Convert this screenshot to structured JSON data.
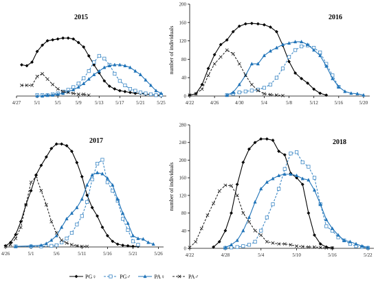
{
  "chart_data": [
    {
      "type": "line",
      "title": "2015",
      "xlabel": "",
      "ylabel": "",
      "x_ticks": [
        "4/27",
        "5/1",
        "5/5",
        "5/9",
        "5/13",
        "5/17",
        "5/21",
        "5/25"
      ],
      "x_range": [
        "4/27",
        "5/26"
      ],
      "y_ticks": [],
      "ylim": [
        0,
        100
      ],
      "grid": false,
      "series": [
        {
          "key": "pg_f",
          "x": [
            "4/28",
            "4/29",
            "4/30",
            "5/1",
            "5/2",
            "5/3",
            "5/4",
            "5/5",
            "5/6",
            "5/7",
            "5/8",
            "5/9",
            "5/10",
            "5/11",
            "5/12",
            "5/13",
            "5/14",
            "5/15",
            "5/16",
            "5/17",
            "5/18",
            "5/19",
            "5/20",
            "5/21",
            "5/22",
            "5/23",
            "5/24",
            "5/25"
          ],
          "values": [
            35,
            34,
            38,
            50,
            57,
            62,
            63,
            64,
            65,
            65,
            64,
            60,
            55,
            45,
            35,
            26,
            17,
            11,
            8,
            6,
            5,
            4,
            3,
            3,
            2,
            2,
            1,
            1
          ]
        },
        {
          "key": "pg_m",
          "x": [
            "5/1",
            "5/2",
            "5/3",
            "5/4",
            "5/5",
            "5/6",
            "5/7",
            "5/8",
            "5/9",
            "5/10",
            "5/11",
            "5/12",
            "5/13",
            "5/14",
            "5/15",
            "5/16",
            "5/17",
            "5/18",
            "5/19",
            "5/20",
            "5/21",
            "5/22",
            "5/23",
            "5/24",
            "5/25"
          ],
          "values": [
            1,
            1,
            1,
            2,
            3,
            5,
            7,
            10,
            14,
            20,
            28,
            38,
            45,
            42,
            35,
            25,
            17,
            12,
            8,
            6,
            4,
            3,
            2,
            1,
            1
          ]
        },
        {
          "key": "pa_f",
          "x": [
            "5/1",
            "5/2",
            "5/3",
            "5/4",
            "5/5",
            "5/6",
            "5/7",
            "5/8",
            "5/9",
            "5/10",
            "5/11",
            "5/12",
            "5/13",
            "5/14",
            "5/15",
            "5/16",
            "5/17",
            "5/18",
            "5/19",
            "5/20",
            "5/21",
            "5/22",
            "5/23",
            "5/24",
            "5/25"
          ],
          "values": [
            0,
            0,
            1,
            1,
            2,
            3,
            5,
            7,
            10,
            14,
            19,
            24,
            28,
            32,
            34,
            35,
            35,
            34,
            32,
            28,
            24,
            18,
            12,
            6,
            3
          ]
        },
        {
          "key": "pa_m",
          "x": [
            "4/28",
            "4/29",
            "4/30",
            "5/1",
            "5/2",
            "5/3",
            "5/4",
            "5/5",
            "5/6",
            "5/7",
            "5/8",
            "5/9",
            "5/10",
            "5/11"
          ],
          "values": [
            12,
            12,
            12,
            22,
            25,
            19,
            13,
            8,
            5,
            4,
            3,
            2,
            2,
            1
          ]
        }
      ]
    },
    {
      "type": "line",
      "title": "2016",
      "xlabel": "",
      "ylabel": "number of individuals",
      "x_ticks": [
        "4/22",
        "4/26",
        "4/30",
        "5/4",
        "5/8",
        "5/12",
        "5/16",
        "5/20"
      ],
      "x_range": [
        "4/22",
        "5/21"
      ],
      "y_ticks": [
        "0",
        "40",
        "80",
        "120",
        "160",
        "200"
      ],
      "ylim": [
        0,
        200
      ],
      "grid": false,
      "series": [
        {
          "key": "pg_f",
          "x": [
            "4/22",
            "4/23",
            "4/24",
            "4/25",
            "4/26",
            "4/27",
            "4/28",
            "4/29",
            "4/30",
            "5/1",
            "5/2",
            "5/3",
            "5/4",
            "5/5",
            "5/6",
            "5/7",
            "5/8",
            "5/9",
            "5/10",
            "5/11",
            "5/12",
            "5/13",
            "5/14"
          ],
          "values": [
            2,
            5,
            25,
            60,
            90,
            112,
            122,
            140,
            152,
            157,
            158,
            157,
            155,
            150,
            140,
            110,
            75,
            50,
            38,
            28,
            15,
            6,
            2
          ]
        },
        {
          "key": "pg_m",
          "x": [
            "4/28",
            "4/29",
            "4/30",
            "5/1",
            "5/2",
            "5/3",
            "5/4",
            "5/5",
            "5/6",
            "5/7",
            "5/8",
            "5/9",
            "5/10",
            "5/11",
            "5/12",
            "5/13",
            "5/14",
            "5/15",
            "5/16"
          ],
          "values": [
            2,
            5,
            8,
            10,
            12,
            14,
            18,
            25,
            40,
            60,
            85,
            100,
            108,
            110,
            105,
            95,
            70,
            45,
            20
          ]
        },
        {
          "key": "pa_f",
          "x": [
            "4/28",
            "4/29",
            "4/30",
            "5/1",
            "5/2",
            "5/3",
            "5/4",
            "5/5",
            "5/6",
            "5/7",
            "5/8",
            "5/9",
            "5/10",
            "5/11",
            "5/12",
            "5/13",
            "5/14",
            "5/15",
            "5/16",
            "5/17",
            "5/18",
            "5/19",
            "5/20"
          ],
          "values": [
            2,
            8,
            25,
            45,
            70,
            70,
            88,
            98,
            105,
            112,
            115,
            118,
            118,
            112,
            100,
            88,
            65,
            38,
            20,
            10,
            6,
            5,
            2
          ]
        },
        {
          "key": "pa_m",
          "x": [
            "4/22",
            "4/23",
            "4/24",
            "4/25",
            "4/26",
            "4/27",
            "4/28",
            "4/29",
            "4/30",
            "5/1",
            "5/2",
            "5/3",
            "5/4",
            "5/5",
            "5/6",
            "5/7"
          ],
          "values": [
            2,
            5,
            15,
            45,
            70,
            85,
            100,
            92,
            70,
            45,
            25,
            12,
            5,
            3,
            2,
            1
          ]
        }
      ]
    },
    {
      "type": "line",
      "title": "2017",
      "xlabel": "",
      "ylabel": "",
      "x_ticks": [
        "4/26",
        "5/1",
        "5/6",
        "5/11",
        "5/16",
        "5/21",
        "5/26"
      ],
      "x_range": [
        "4/26",
        "5/27"
      ],
      "y_ticks": [],
      "ylim": [
        0,
        200
      ],
      "grid": false,
      "series": [
        {
          "key": "pg_f",
          "x": [
            "4/26",
            "4/27",
            "4/28",
            "4/29",
            "4/30",
            "5/1",
            "5/2",
            "5/3",
            "5/4",
            "5/5",
            "5/6",
            "5/7",
            "5/8",
            "5/9",
            "5/10",
            "5/11",
            "5/12",
            "5/13",
            "5/14",
            "5/15",
            "5/16",
            "5/17",
            "5/18",
            "5/19",
            "5/20",
            "5/21",
            "5/22"
          ],
          "values": [
            2,
            8,
            22,
            45,
            75,
            100,
            128,
            145,
            160,
            175,
            183,
            183,
            180,
            170,
            150,
            125,
            92,
            70,
            55,
            35,
            20,
            10,
            5,
            3,
            2,
            1,
            1
          ]
        },
        {
          "key": "pg_m",
          "x": [
            "4/28",
            "5/1",
            "5/3",
            "5/5",
            "5/6",
            "5/7",
            "5/8",
            "5/9",
            "5/10",
            "5/11",
            "5/12",
            "5/13",
            "5/14",
            "5/15",
            "5/16",
            "5/17",
            "5/18",
            "5/19",
            "5/20",
            "5/21",
            "5/22"
          ],
          "values": [
            1,
            1,
            1,
            2,
            3,
            8,
            15,
            25,
            40,
            55,
            80,
            120,
            148,
            155,
            115,
            100,
            82,
            50,
            30,
            10,
            4
          ]
        },
        {
          "key": "pa_f",
          "x": [
            "4/28",
            "5/1",
            "5/3",
            "5/4",
            "5/5",
            "5/6",
            "5/7",
            "5/8",
            "5/9",
            "5/10",
            "5/11",
            "5/12",
            "5/13",
            "5/14",
            "5/15",
            "5/16",
            "5/17",
            "5/18",
            "5/19",
            "5/20",
            "5/21",
            "5/22",
            "5/23",
            "5/24",
            "5/25"
          ],
          "values": [
            1,
            2,
            3,
            6,
            12,
            20,
            35,
            50,
            60,
            70,
            85,
            110,
            128,
            132,
            130,
            122,
            110,
            85,
            60,
            42,
            20,
            15,
            14,
            8,
            5
          ]
        },
        {
          "key": "pa_m",
          "x": [
            "4/26",
            "4/27",
            "4/28",
            "4/29",
            "4/30",
            "5/1",
            "5/2",
            "5/3",
            "5/4",
            "5/5",
            "5/6",
            "5/7",
            "5/8",
            "5/9",
            "5/10",
            "5/11",
            "5/12"
          ],
          "values": [
            1,
            4,
            15,
            35,
            75,
            115,
            125,
            100,
            75,
            45,
            25,
            12,
            7,
            4,
            2,
            1,
            1
          ]
        }
      ]
    },
    {
      "type": "line",
      "title": "2018",
      "xlabel": "",
      "ylabel": "number of individuals",
      "x_ticks": [
        "4/22",
        "4/28",
        "5/4",
        "5/10",
        "5/16",
        "5/22"
      ],
      "x_range": [
        "4/22",
        "5/23"
      ],
      "y_ticks": [
        "0",
        "40",
        "80",
        "120",
        "160",
        "200",
        "240",
        "280"
      ],
      "ylim": [
        0,
        280
      ],
      "grid": false,
      "series": [
        {
          "key": "pg_f",
          "x": [
            "4/26",
            "4/27",
            "4/28",
            "4/29",
            "4/30",
            "5/1",
            "5/2",
            "5/3",
            "5/4",
            "5/5",
            "5/6",
            "5/7",
            "5/8",
            "5/9",
            "5/10",
            "5/11",
            "5/12",
            "5/13",
            "5/14",
            "5/15",
            "5/16"
          ],
          "values": [
            3,
            15,
            40,
            80,
            145,
            195,
            225,
            240,
            248,
            248,
            245,
            220,
            212,
            170,
            160,
            145,
            80,
            30,
            10,
            3,
            1
          ]
        },
        {
          "key": "pg_m",
          "x": [
            "4/28",
            "4/29",
            "4/30",
            "5/1",
            "5/2",
            "5/3",
            "5/4",
            "5/5",
            "5/6",
            "5/7",
            "5/8",
            "5/9",
            "5/10",
            "5/11",
            "5/12",
            "5/13",
            "5/14",
            "5/15",
            "5/16",
            "5/17",
            "5/18",
            "5/19",
            "5/20",
            "5/21",
            "5/22"
          ],
          "values": [
            1,
            2,
            3,
            5,
            8,
            15,
            40,
            70,
            100,
            135,
            180,
            215,
            218,
            195,
            185,
            160,
            100,
            50,
            40,
            25,
            18,
            10,
            5,
            3,
            1
          ]
        },
        {
          "key": "pa_f",
          "x": [
            "4/28",
            "4/29",
            "4/30",
            "5/1",
            "5/2",
            "5/3",
            "5/4",
            "5/5",
            "5/6",
            "5/7",
            "5/8",
            "5/9",
            "5/10",
            "5/11",
            "5/12",
            "5/13",
            "5/14",
            "5/15",
            "5/16",
            "5/17",
            "5/18",
            "5/19",
            "5/20",
            "5/21",
            "5/22"
          ],
          "values": [
            2,
            8,
            18,
            40,
            70,
            105,
            135,
            150,
            158,
            165,
            168,
            168,
            165,
            158,
            155,
            132,
            100,
            65,
            45,
            30,
            18,
            15,
            10,
            5,
            2
          ]
        },
        {
          "key": "pa_m",
          "x": [
            "4/22",
            "4/23",
            "4/24",
            "4/25",
            "4/26",
            "4/27",
            "4/28",
            "4/29",
            "4/30",
            "5/1",
            "5/2",
            "5/3",
            "5/4",
            "5/5",
            "5/6",
            "5/7",
            "5/8",
            "5/9",
            "5/10",
            "5/11",
            "5/12",
            "5/13",
            "5/14",
            "5/15",
            "5/16"
          ],
          "values": [
            2,
            15,
            45,
            75,
            102,
            130,
            143,
            142,
            120,
            80,
            60,
            40,
            30,
            15,
            12,
            10,
            10,
            8,
            5,
            4,
            3,
            3,
            2,
            1,
            1
          ]
        }
      ]
    }
  ],
  "legend": {
    "placement": "bottom",
    "items": [
      {
        "key": "pg_f",
        "label": "PG♀",
        "color": "#000000",
        "dash": "solid",
        "marker": "diamond"
      },
      {
        "key": "pg_m",
        "label": "PG♂",
        "color": "#3a86c4",
        "dash": "dashed",
        "marker": "square"
      },
      {
        "key": "pa_f",
        "label": "PA♀",
        "color": "#1f73b8",
        "dash": "solid",
        "marker": "triangle"
      },
      {
        "key": "pa_m",
        "label": "PA♂",
        "color": "#222222",
        "dash": "dashed",
        "marker": "x"
      }
    ]
  }
}
